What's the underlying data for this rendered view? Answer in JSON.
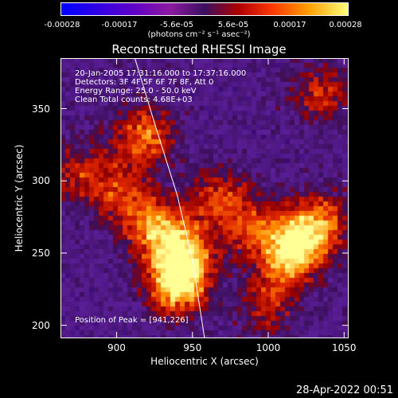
{
  "colorbar": {
    "ticks": [
      "-0.00028",
      "-0.00017",
      "-5.6e-05",
      "5.6e-05",
      "0.00017",
      "0.00028"
    ],
    "unit_label": "(photons cm⁻² s⁻¹ asec⁻²)"
  },
  "header": {
    "title": "Reconstructed RHESSI Image"
  },
  "annotations": {
    "line1": "20-Jan-2005 17:31:16.000 to 17:37:16.000",
    "line2": "Detectors: 3F 4F 5F 6F 7F 8F, Att 0",
    "line3": "Energy Range: 25.0 - 50.0 keV",
    "line4": "Clean     Total counts: 4.68E+03",
    "peak": "Position of Peak = [941,226]"
  },
  "footer": {
    "timestamp": "28-Apr-2022 00:51"
  },
  "chart_data": {
    "type": "heatmap",
    "title": "Reconstructed RHESSI Image",
    "xlabel": "Heliocentric X (arcsec)",
    "ylabel": "Heliocentric Y (arcsec)",
    "xlim": [
      863,
      1053
    ],
    "ylim": [
      191,
      385
    ],
    "xticks": [
      "900",
      "950",
      "1000",
      "1050"
    ],
    "yticks": [
      "200",
      "250",
      "300",
      "350"
    ],
    "colorbar_range": [
      -0.00028,
      0.00028
    ],
    "peak": [
      941,
      226
    ],
    "bright_sources": [
      {
        "x": 940,
        "y": 228,
        "intensity": 1.0
      },
      {
        "x": 945,
        "y": 250,
        "intensity": 0.8
      },
      {
        "x": 925,
        "y": 268,
        "intensity": 0.75
      },
      {
        "x": 918,
        "y": 330,
        "intensity": 0.7
      },
      {
        "x": 1020,
        "y": 258,
        "intensity": 0.7
      },
      {
        "x": 1035,
        "y": 272,
        "intensity": 0.6
      },
      {
        "x": 968,
        "y": 288,
        "intensity": 0.55
      },
      {
        "x": 990,
        "y": 268,
        "intensity": 0.5
      },
      {
        "x": 1012,
        "y": 245,
        "intensity": 0.55
      },
      {
        "x": 902,
        "y": 292,
        "intensity": 0.5
      },
      {
        "x": 875,
        "y": 305,
        "intensity": 0.45
      },
      {
        "x": 1035,
        "y": 360,
        "intensity": 0.5
      },
      {
        "x": 1000,
        "y": 215,
        "intensity": 0.45
      }
    ],
    "limb_curve": [
      {
        "x": 912,
        "y": 385
      },
      {
        "x": 925,
        "y": 340
      },
      {
        "x": 940,
        "y": 290
      },
      {
        "x": 950,
        "y": 245
      },
      {
        "x": 958,
        "y": 191
      }
    ]
  }
}
